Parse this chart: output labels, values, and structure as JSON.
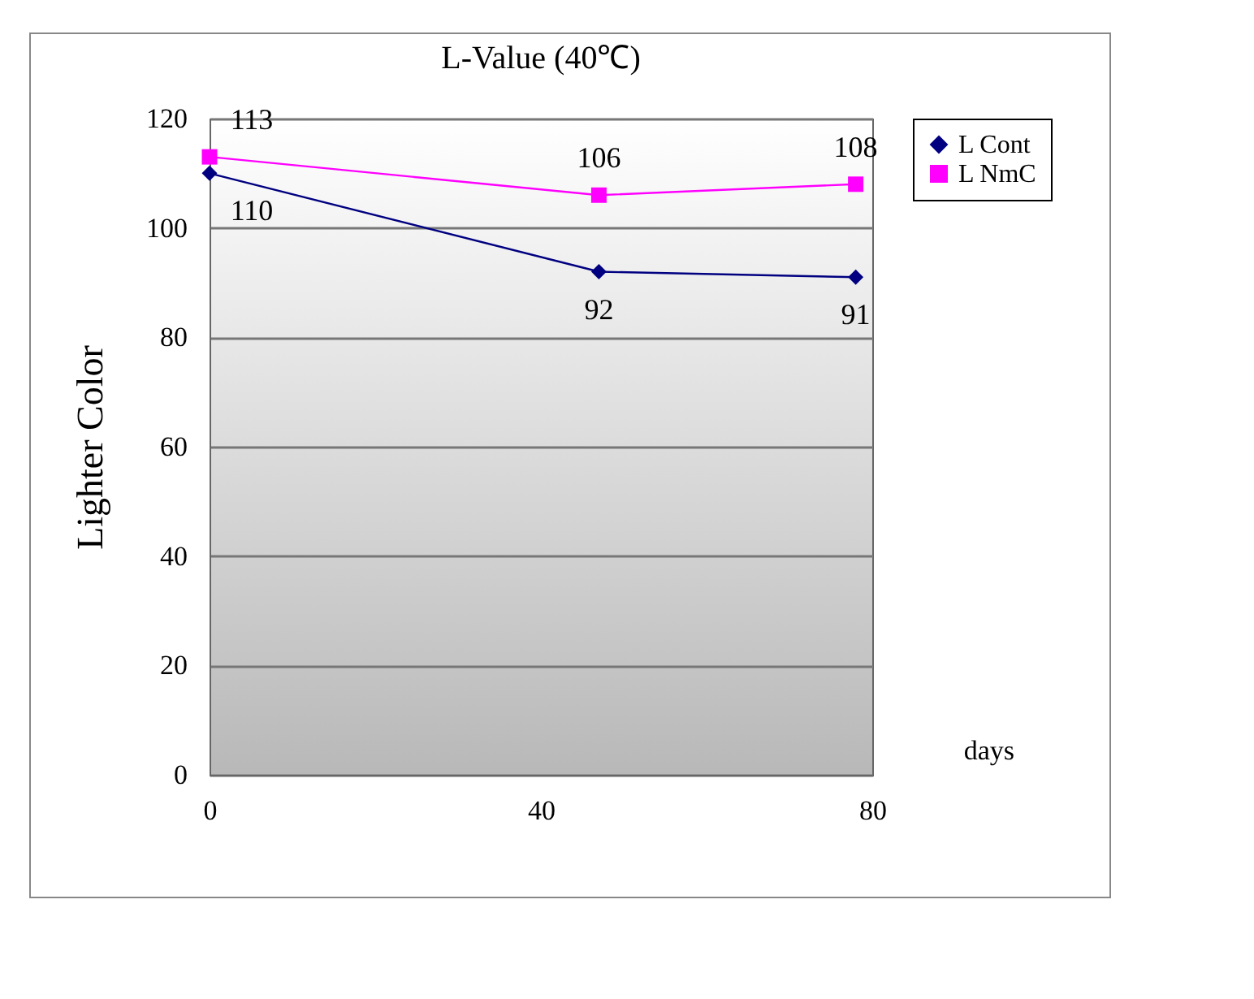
{
  "chart_data": {
    "type": "line",
    "title": "L-Value (40℃)",
    "xlabel": "days",
    "ylabel": "Lighter Color",
    "x": [
      0,
      47,
      78
    ],
    "series": [
      {
        "name": "L Cont",
        "color": "#000080",
        "marker": "diamond",
        "values": [
          110,
          92,
          91
        ]
      },
      {
        "name": "L NmC",
        "color": "#ff00ff",
        "marker": "square",
        "values": [
          113,
          106,
          108
        ]
      }
    ],
    "xlim": [
      0,
      80
    ],
    "xticks": [
      0,
      40,
      80
    ],
    "ylim": [
      0,
      120
    ],
    "yticks": [
      0,
      20,
      40,
      60,
      80,
      100,
      120
    ],
    "grid": "y",
    "legend": "right",
    "data_labels": true,
    "line_style": "solid"
  }
}
